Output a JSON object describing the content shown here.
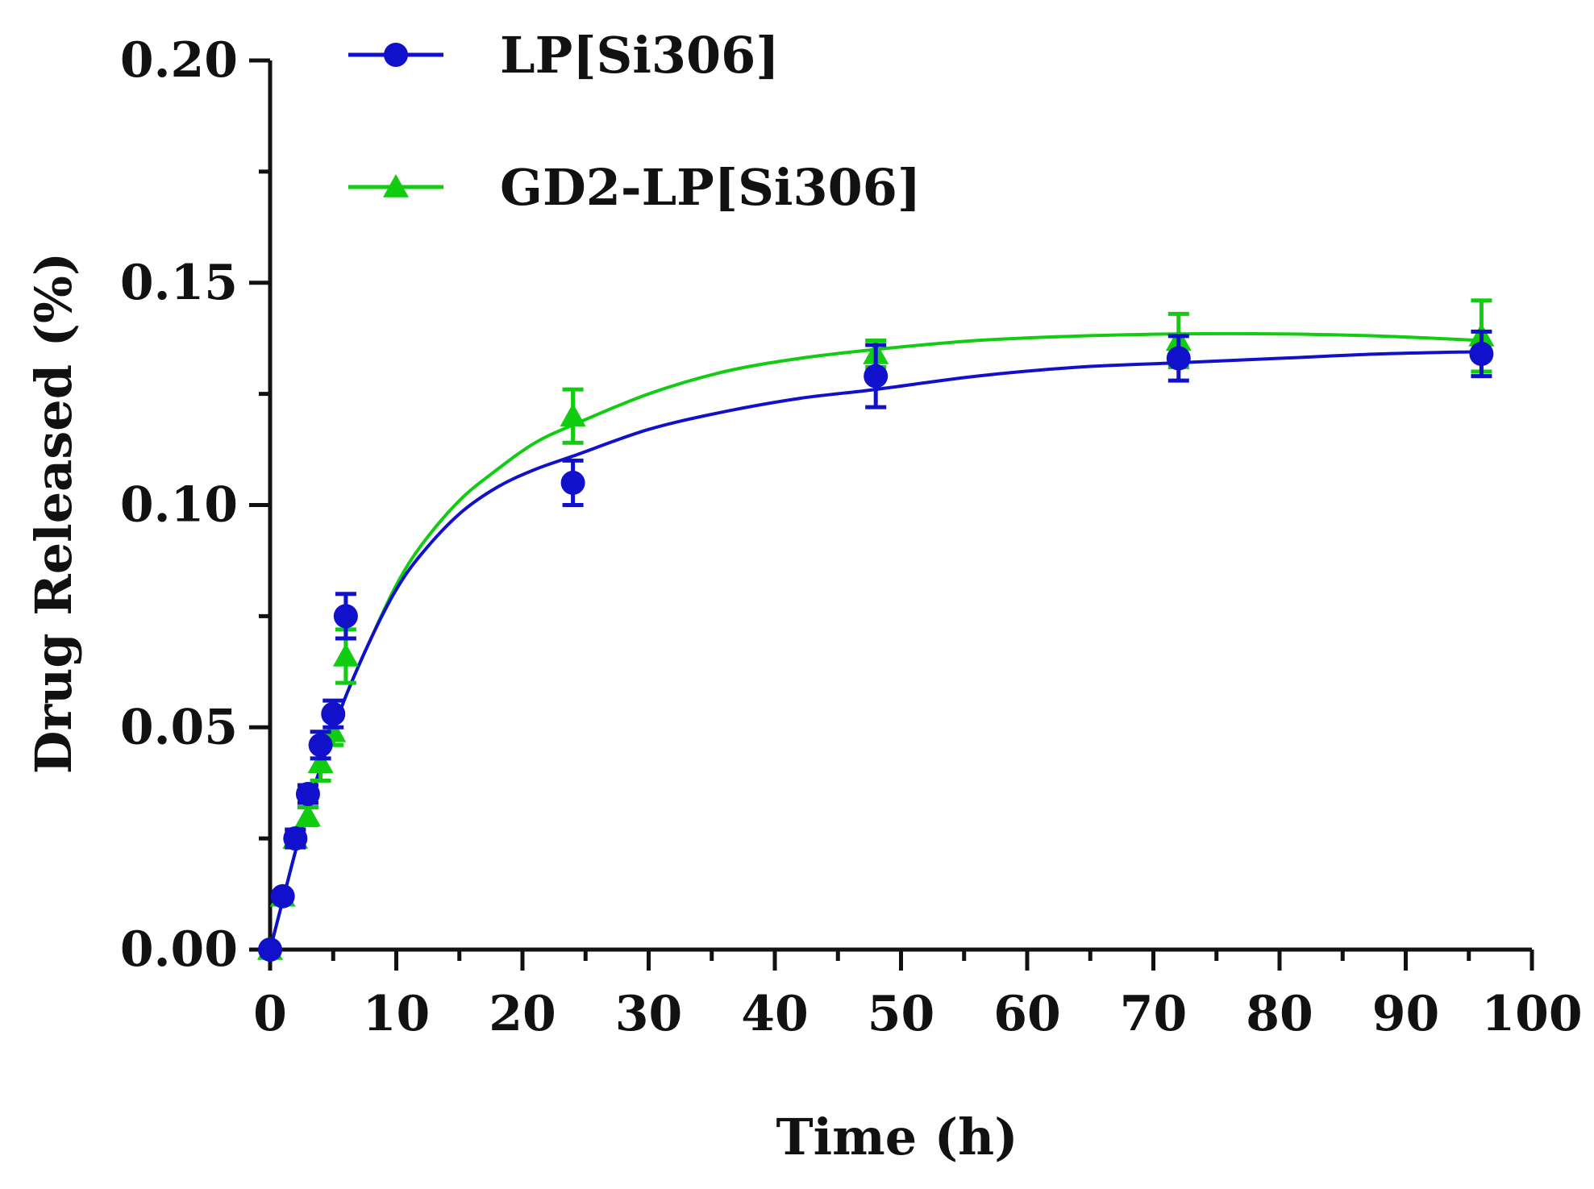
{
  "chart_data": {
    "type": "scatter",
    "title": "",
    "xlabel": "Time (h)",
    "ylabel": "Drug Released (%)",
    "xlim": [
      0,
      100
    ],
    "ylim": [
      0,
      0.2
    ],
    "grid": false,
    "legend_position": "top-left",
    "x_ticks": [
      "0",
      "10",
      "20",
      "30",
      "40",
      "50",
      "60",
      "70",
      "80",
      "90",
      "100"
    ],
    "y_ticks": [
      "0.00",
      "0.05",
      "0.10",
      "0.15",
      "0.20"
    ],
    "series": [
      {
        "name": "LP[Si306]",
        "marker": "circle",
        "color": "#1111cc",
        "x": [
          0,
          1,
          2,
          3,
          4,
          5,
          6,
          24,
          48,
          72,
          96
        ],
        "y": [
          0.0,
          0.012,
          0.025,
          0.035,
          0.046,
          0.053,
          0.075,
          0.105,
          0.129,
          0.133,
          0.134
        ],
        "error": [
          0.0,
          0.001,
          0.002,
          0.002,
          0.003,
          0.003,
          0.005,
          0.005,
          0.007,
          0.005,
          0.005
        ],
        "fit": [
          [
            0,
            0.0
          ],
          [
            1,
            0.011
          ],
          [
            2,
            0.022
          ],
          [
            3,
            0.032
          ],
          [
            4,
            0.041
          ],
          [
            5,
            0.049
          ],
          [
            6,
            0.057
          ],
          [
            8,
            0.07
          ],
          [
            10,
            0.081
          ],
          [
            12,
            0.089
          ],
          [
            15,
            0.098
          ],
          [
            18,
            0.104
          ],
          [
            21,
            0.108
          ],
          [
            24,
            0.111
          ],
          [
            30,
            0.117
          ],
          [
            36,
            0.121
          ],
          [
            42,
            0.124
          ],
          [
            48,
            0.126
          ],
          [
            56,
            0.129
          ],
          [
            64,
            0.131
          ],
          [
            72,
            0.132
          ],
          [
            80,
            0.133
          ],
          [
            88,
            0.134
          ],
          [
            96,
            0.1345
          ]
        ]
      },
      {
        "name": "GD2-LP[Si306]",
        "marker": "triangle",
        "color": "#11cc11",
        "x": [
          0,
          1,
          2,
          3,
          4,
          5,
          6,
          24,
          48,
          72,
          96
        ],
        "y": [
          0.0,
          0.012,
          0.025,
          0.03,
          0.042,
          0.049,
          0.066,
          0.12,
          0.134,
          0.137,
          0.138
        ],
        "error": [
          0.0,
          0.001,
          0.002,
          0.002,
          0.004,
          0.003,
          0.006,
          0.006,
          0.003,
          0.006,
          0.008
        ],
        "fit": [
          [
            0,
            0.0
          ],
          [
            1,
            0.011
          ],
          [
            2,
            0.022
          ],
          [
            3,
            0.032
          ],
          [
            4,
            0.041
          ],
          [
            5,
            0.049
          ],
          [
            6,
            0.057
          ],
          [
            8,
            0.07
          ],
          [
            10,
            0.082
          ],
          [
            12,
            0.091
          ],
          [
            15,
            0.101
          ],
          [
            18,
            0.108
          ],
          [
            21,
            0.114
          ],
          [
            24,
            0.118
          ],
          [
            30,
            0.125
          ],
          [
            36,
            0.13
          ],
          [
            42,
            0.133
          ],
          [
            48,
            0.135
          ],
          [
            56,
            0.137
          ],
          [
            64,
            0.138
          ],
          [
            72,
            0.1385
          ],
          [
            80,
            0.1385
          ],
          [
            88,
            0.138
          ],
          [
            96,
            0.137
          ]
        ]
      }
    ]
  }
}
